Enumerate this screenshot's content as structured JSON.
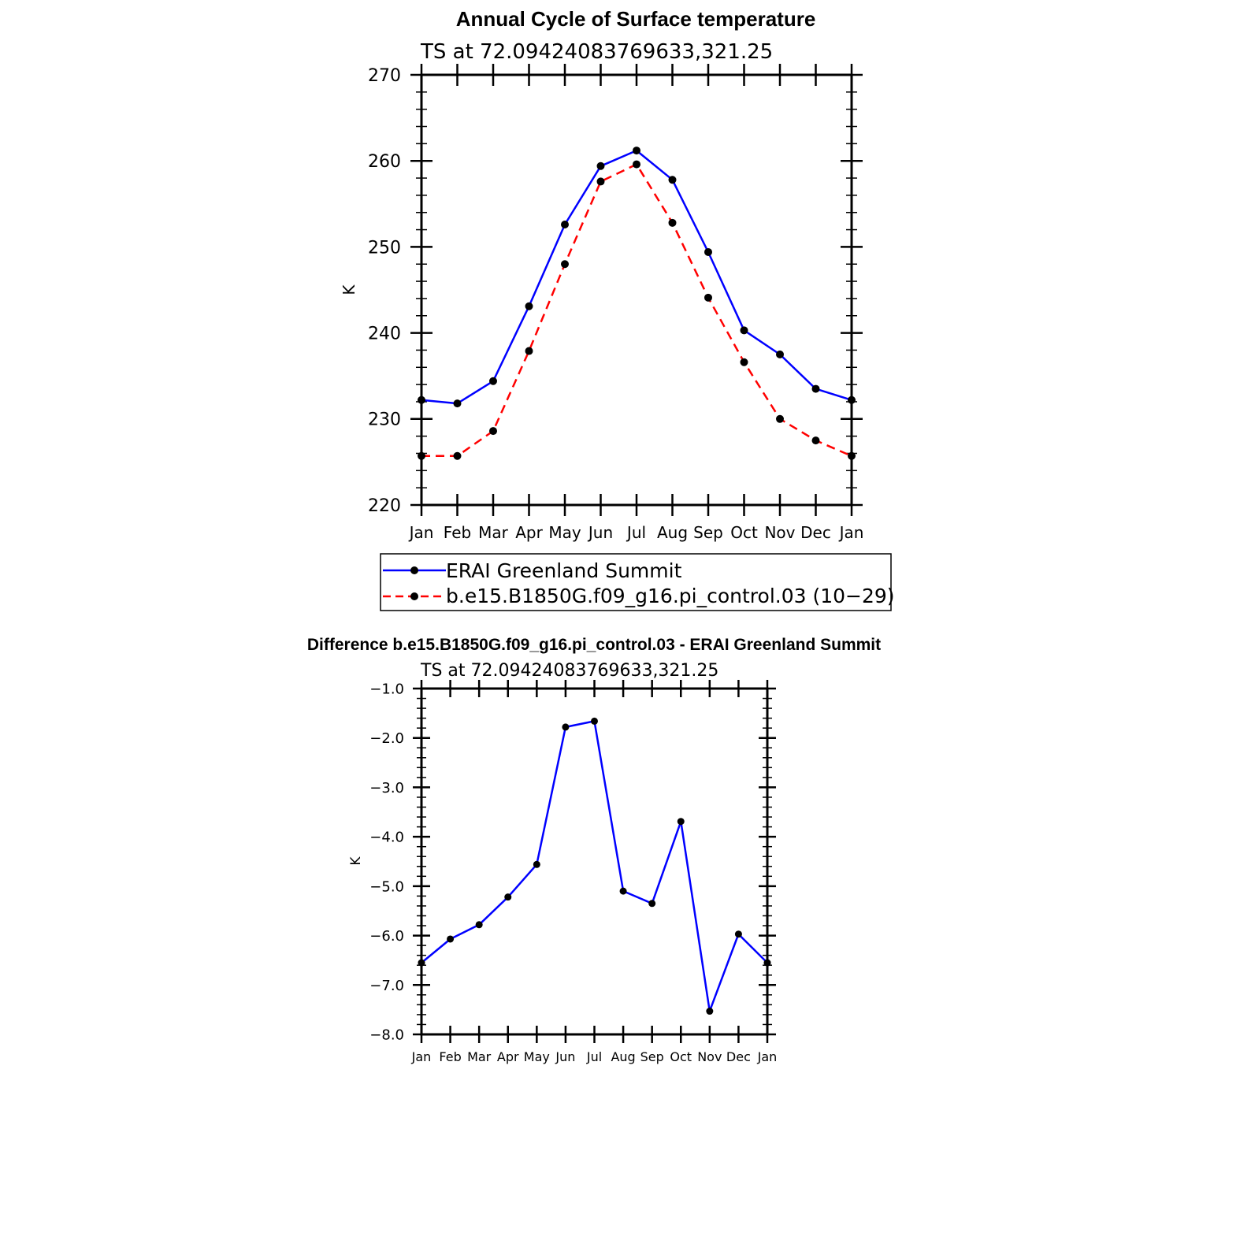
{
  "chart_data": [
    {
      "type": "line",
      "title": "Annual Cycle of Surface temperature",
      "subtitle": "TS at 72.09424083769633,321.25",
      "xlabel": "",
      "ylabel": "K",
      "categories": [
        "Jan",
        "Feb",
        "Mar",
        "Apr",
        "May",
        "Jun",
        "Jul",
        "Aug",
        "Sep",
        "Oct",
        "Nov",
        "Dec",
        "Jan"
      ],
      "ylim": [
        220,
        270
      ],
      "yticks": [
        "220",
        "230",
        "240",
        "250",
        "260",
        "270"
      ],
      "series": [
        {
          "name": "ERAI Greenland Summit",
          "color": "#0000ff",
          "dashed": false,
          "values": [
            232.2,
            231.8,
            234.4,
            243.1,
            252.6,
            259.4,
            261.2,
            257.8,
            249.4,
            240.3,
            237.5,
            233.5,
            232.2
          ]
        },
        {
          "name": "b.e15.B1850G.f09_g16.pi_control.03 (10−29)",
          "color": "#ff0000",
          "dashed": true,
          "values": [
            225.7,
            225.7,
            228.6,
            237.9,
            248.0,
            257.6,
            259.6,
            252.8,
            244.1,
            236.6,
            230.0,
            227.5,
            225.7
          ]
        }
      ],
      "legend": "below"
    },
    {
      "type": "line",
      "title": "Difference b.e15.B1850G.f09_g16.pi_control.03 - ERAI Greenland Summit",
      "subtitle": "TS at 72.09424083769633,321.25",
      "xlabel": "",
      "ylabel": "K",
      "categories": [
        "Jan",
        "Feb",
        "Mar",
        "Apr",
        "May",
        "Jun",
        "Jul",
        "Aug",
        "Sep",
        "Oct",
        "Nov",
        "Dec",
        "Jan"
      ],
      "ylim": [
        -8.0,
        -1.0
      ],
      "yticks": [
        "−1.0",
        "−2.0",
        "−3.0",
        "−4.0",
        "−5.0",
        "−6.0",
        "−7.0",
        "−8.0"
      ],
      "series": [
        {
          "color": "#0000ff",
          "dashed": false,
          "values": [
            -6.55,
            -6.07,
            -5.78,
            -5.22,
            -4.56,
            -1.78,
            -1.66,
            -5.1,
            -5.35,
            -3.69,
            -7.53,
            -5.97,
            -6.55
          ]
        }
      ]
    }
  ]
}
